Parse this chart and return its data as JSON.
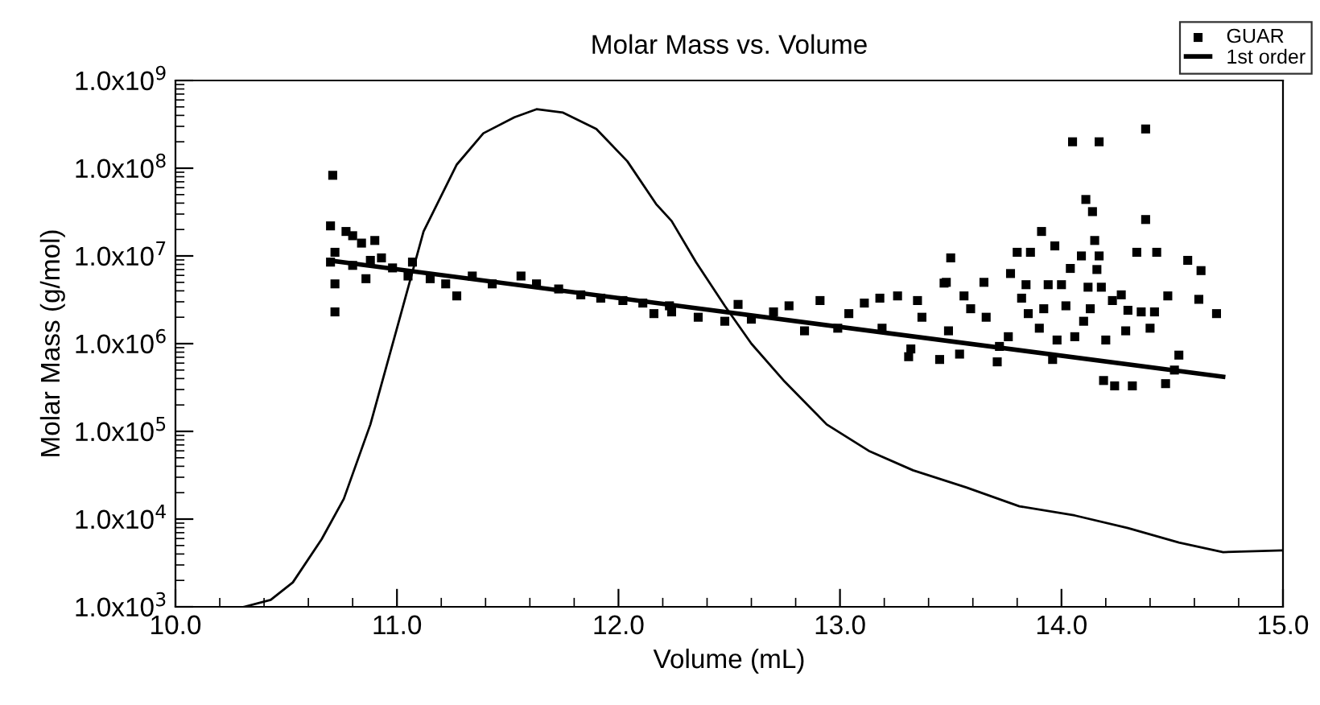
{
  "chart_data": {
    "type": "scatter",
    "title": "Molar Mass vs. Volume",
    "xlabel": "Volume (mL)",
    "ylabel": "Molar Mass (g/mol)",
    "log": "y",
    "grid": false,
    "legend": "top right",
    "xlim": [
      10,
      15
    ],
    "xticks": [
      {
        "value": 10,
        "label": "10.0"
      },
      {
        "value": 11,
        "label": "11.0"
      },
      {
        "value": 12,
        "label": "12.0"
      },
      {
        "value": 13,
        "label": "13.0"
      },
      {
        "value": 14,
        "label": "14.0"
      },
      {
        "value": 15,
        "label": "15.0"
      }
    ],
    "ylim": [
      1000.0,
      1000000000.0
    ],
    "yticks": [
      {
        "value": 1000.0,
        "label": "1.0x10$^{3}$"
      },
      {
        "value": 10000.0,
        "label": "1.0x10$^{4}$"
      },
      {
        "value": 100000.0,
        "label": "1.0x10$^{5}$"
      },
      {
        "value": 1000000.0,
        "label": "1.0x10$^{6}$"
      },
      {
        "value": 10000000.0,
        "label": "1.0x10$^{7}$"
      },
      {
        "value": 100000000.0,
        "label": "1.0x10$^{8}$"
      },
      {
        "value": 1000000000.0,
        "label": "1.0x10$^{9}$"
      }
    ],
    "series": [
      {
        "name": "GUAR",
        "marker": "square",
        "color": "#000000",
        "x": [
          10.71,
          10.7,
          10.72,
          10.7,
          10.72,
          10.72,
          10.77,
          10.8,
          10.84,
          10.9,
          10.8,
          10.86,
          10.88,
          10.93,
          10.98,
          11.07,
          11.05,
          11.15,
          11.27,
          11.22,
          11.34,
          11.43,
          11.56,
          11.63,
          11.73,
          11.83,
          11.92,
          12.02,
          12.11,
          12.16,
          12.23,
          12.24,
          12.36,
          12.48,
          12.54,
          12.6,
          12.7,
          12.77,
          12.84,
          12.91,
          12.99,
          13.04,
          13.11,
          13.18,
          13.19,
          13.26,
          13.31,
          13.32,
          13.35,
          13.37,
          13.45,
          13.47,
          13.48,
          13.5,
          13.49,
          13.54,
          13.56,
          13.59,
          13.65,
          13.66,
          13.71,
          13.72,
          13.76,
          13.77,
          13.8,
          13.82,
          13.84,
          13.86,
          13.85,
          13.9,
          13.91,
          13.92,
          13.94,
          13.96,
          13.97,
          13.98,
          14.0,
          14.02,
          14.04,
          14.05,
          14.06,
          14.09,
          14.1,
          14.11,
          14.12,
          14.13,
          14.14,
          14.15,
          14.16,
          14.17,
          14.17,
          14.18,
          14.19,
          14.2,
          14.23,
          14.24,
          14.27,
          14.29,
          14.3,
          14.32,
          14.34,
          14.36,
          14.38,
          14.38,
          14.4,
          14.42,
          14.43,
          14.47,
          14.48,
          14.51,
          14.53,
          14.57,
          14.62,
          14.63,
          14.7
        ],
        "values": [
          83000000.0,
          22000000.0,
          11000000.0,
          8500000.0,
          4800000.0,
          2300000.0,
          19000000.0,
          17000000.0,
          14000000.0,
          15000000.0,
          7800000.0,
          5500000.0,
          8900000.0,
          9500000.0,
          7300000.0,
          8500000.0,
          5900000.0,
          5500000.0,
          3500000.0,
          4800000.0,
          5900000.0,
          4800000.0,
          5900000.0,
          4800000.0,
          4200000.0,
          3600000.0,
          3300000.0,
          3100000.0,
          2900000.0,
          2200000.0,
          2700000.0,
          2300000.0,
          2000000.0,
          1800000.0,
          2800000.0,
          1900000.0,
          2300000.0,
          2700000.0,
          1400000.0,
          3100000.0,
          1500000.0,
          2200000.0,
          2900000.0,
          3300000.0,
          1500000.0,
          3500000.0,
          710000.0,
          870000.0,
          3100000.0,
          2000000.0,
          660000.0,
          4900000.0,
          5000000.0,
          9500000.0,
          1400000.0,
          760000.0,
          3500000.0,
          2500000.0,
          5000000.0,
          2000000.0,
          620000.0,
          930000.0,
          1200000.0,
          6300000.0,
          11000000.0,
          3300000.0,
          4700000.0,
          11000000.0,
          2200000.0,
          1500000.0,
          19000000.0,
          2500000.0,
          4700000.0,
          660000.0,
          13000000.0,
          1100000.0,
          4700000.0,
          2700000.0,
          7200000.0,
          200000000.0,
          1200000.0,
          10000000.0,
          1800000.0,
          44000000.0,
          4400000.0,
          2500000.0,
          32000000.0,
          15000000.0,
          7000000.0,
          10000000.0,
          200000000.0,
          4400000.0,
          380000.0,
          1100000.0,
          3100000.0,
          330000.0,
          3600000.0,
          1400000.0,
          2400000.0,
          330000.0,
          11000000.0,
          2300000.0,
          280000000.0,
          26000000.0,
          1500000.0,
          2300000.0,
          11000000.0,
          350000.0,
          3500000.0,
          500000.0,
          740000.0,
          8900000.0,
          3200000.0,
          6800000.0,
          2200000.0
        ]
      },
      {
        "name": "1st order",
        "type": "line",
        "marker": "none",
        "line_style": "solid",
        "color": "#000000",
        "x": [
          10.72,
          14.73
        ],
        "values": [
          8700000.0,
          420000.0
        ]
      },
      {
        "type": "line",
        "marker": "none",
        "line_style": "solid",
        "color": "#000000",
        "x": [
          10.31,
          10.43,
          10.53,
          10.66,
          10.76,
          10.88,
          11.0,
          11.12,
          11.27,
          11.39,
          11.53,
          11.63,
          11.75,
          11.9,
          12.04,
          12.17,
          12.24,
          12.35,
          12.48,
          12.6,
          12.75,
          12.94,
          13.13,
          13.33,
          13.57,
          13.81,
          14.06,
          14.3,
          14.53,
          14.73,
          15.0
        ],
        "values": [
          1000.0,
          1200.0,
          1900.0,
          5900.0,
          17000.0,
          120000.0,
          1500000.0,
          19000000.0,
          110000000.0,
          250000000.0,
          380000000.0,
          470000000.0,
          430000000.0,
          280000000.0,
          120000000.0,
          39000000.0,
          25000000.0,
          8500000.0,
          2700000.0,
          1000000.0,
          370000.0,
          120000.0,
          60000.0,
          36000.0,
          23000.0,
          14000.0,
          11000.0,
          7900.0,
          5400.0,
          4200.0,
          4400.0
        ]
      }
    ]
  }
}
